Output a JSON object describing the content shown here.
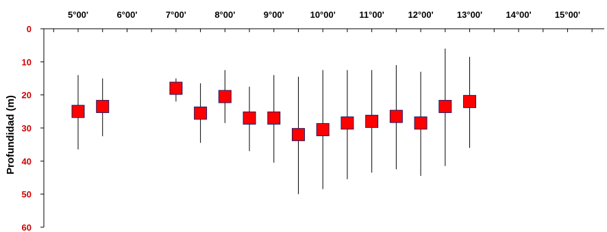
{
  "chart_data": {
    "type": "scatter",
    "title": "",
    "xlabel": "",
    "ylabel": "Profundidad (m)",
    "x_ticks": [
      "5°00'",
      "6°00'",
      "7°00'",
      "8°00'",
      "9°00'",
      "10°00'",
      "11°00'",
      "12°00'",
      "13°00'",
      "14°00'",
      "15°00'"
    ],
    "x_tick_values": [
      5,
      6,
      7,
      8,
      9,
      10,
      11,
      12,
      13,
      14,
      15
    ],
    "xlim": [
      4.3,
      15.75
    ],
    "y_ticks": [
      "0",
      "10",
      "20",
      "30",
      "40",
      "50",
      "60"
    ],
    "ylim": [
      0,
      60
    ],
    "y_inverted": true,
    "x_axis_position": "top",
    "grid": false,
    "colors": {
      "marker": "#ff0000",
      "marker_edge": "#1a1a66",
      "whisker": "#000000",
      "y_tick_labels": "#cc0000"
    },
    "series": [
      {
        "points": [
          {
            "x": 5.0,
            "y": 25.0,
            "low": 14.0,
            "high": 36.5
          },
          {
            "x": 5.5,
            "y": 23.5,
            "low": 15.0,
            "high": 32.5
          },
          {
            "x": 7.0,
            "y": 18.0,
            "low": 15.0,
            "high": 22.0
          },
          {
            "x": 7.5,
            "y": 25.5,
            "low": 16.5,
            "high": 34.5
          },
          {
            "x": 8.0,
            "y": 20.5,
            "low": 12.5,
            "high": 28.5
          },
          {
            "x": 8.5,
            "y": 27.0,
            "low": 17.5,
            "high": 37.0
          },
          {
            "x": 9.0,
            "y": 27.0,
            "low": 14.0,
            "high": 40.5
          },
          {
            "x": 9.5,
            "y": 32.0,
            "low": 14.5,
            "high": 50.0
          },
          {
            "x": 10.0,
            "y": 30.5,
            "low": 12.5,
            "high": 48.5
          },
          {
            "x": 10.5,
            "y": 28.5,
            "low": 12.5,
            "high": 45.5
          },
          {
            "x": 11.0,
            "y": 28.0,
            "low": 12.5,
            "high": 43.5
          },
          {
            "x": 11.5,
            "y": 26.5,
            "low": 11.0,
            "high": 42.5
          },
          {
            "x": 12.0,
            "y": 28.5,
            "low": 13.0,
            "high": 44.5
          },
          {
            "x": 12.5,
            "y": 23.5,
            "low": 6.0,
            "high": 41.5
          },
          {
            "x": 13.0,
            "y": 22.0,
            "low": 8.5,
            "high": 36.0
          }
        ]
      }
    ]
  }
}
